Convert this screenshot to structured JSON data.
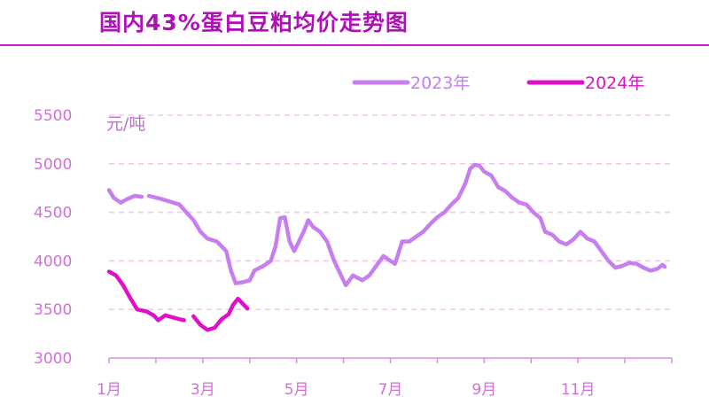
{
  "chart_data": {
    "type": "line",
    "title": "国内43%蛋白豆粕均价走势图",
    "ylabel": "元/吨",
    "xlabel": "",
    "ylim": [
      3000,
      5500
    ],
    "yticks": [
      5500,
      5000,
      4500,
      4000,
      3500,
      3000
    ],
    "xlim": [
      1,
      13
    ],
    "xticks": [
      {
        "pos": 1,
        "label": "1月"
      },
      {
        "pos": 3,
        "label": "3月"
      },
      {
        "pos": 5,
        "label": "5月"
      },
      {
        "pos": 7,
        "label": "7月"
      },
      {
        "pos": 9,
        "label": "9月"
      },
      {
        "pos": 11,
        "label": "11月"
      }
    ],
    "grid": true,
    "legend_position": "top-right",
    "series": [
      {
        "name": "2023年",
        "color": "#c77ff0",
        "segments": [
          [
            [
              1.0,
              4730
            ],
            [
              1.1,
              4650
            ],
            [
              1.25,
              4600
            ],
            [
              1.4,
              4640
            ],
            [
              1.55,
              4670
            ],
            [
              1.7,
              4660
            ]
          ],
          [
            [
              1.85,
              4670
            ],
            [
              2.1,
              4640
            ],
            [
              2.3,
              4610
            ],
            [
              2.5,
              4580
            ],
            [
              2.65,
              4500
            ],
            [
              2.8,
              4420
            ],
            [
              2.95,
              4300
            ],
            [
              3.1,
              4230
            ],
            [
              3.3,
              4200
            ],
            [
              3.5,
              4100
            ],
            [
              3.6,
              3900
            ],
            [
              3.7,
              3770
            ],
            [
              3.85,
              3780
            ],
            [
              4.0,
              3800
            ],
            [
              4.1,
              3900
            ],
            [
              4.3,
              3950
            ],
            [
              4.45,
              4000
            ],
            [
              4.55,
              4150
            ],
            [
              4.65,
              4440
            ],
            [
              4.75,
              4450
            ],
            [
              4.85,
              4200
            ],
            [
              4.95,
              4100
            ],
            [
              5.05,
              4200
            ],
            [
              5.15,
              4300
            ],
            [
              5.25,
              4420
            ],
            [
              5.35,
              4350
            ],
            [
              5.5,
              4300
            ],
            [
              5.65,
              4200
            ],
            [
              5.8,
              4000
            ],
            [
              5.95,
              3850
            ],
            [
              6.05,
              3750
            ],
            [
              6.2,
              3850
            ],
            [
              6.4,
              3800
            ],
            [
              6.55,
              3850
            ],
            [
              6.7,
              3950
            ],
            [
              6.85,
              4050
            ],
            [
              7.0,
              4000
            ],
            [
              7.1,
              3970
            ],
            [
              7.25,
              4200
            ],
            [
              7.4,
              4200
            ],
            [
              7.55,
              4250
            ],
            [
              7.7,
              4300
            ],
            [
              7.85,
              4380
            ],
            [
              8.0,
              4450
            ],
            [
              8.15,
              4500
            ],
            [
              8.3,
              4580
            ],
            [
              8.45,
              4650
            ],
            [
              8.6,
              4800
            ],
            [
              8.7,
              4950
            ],
            [
              8.8,
              4990
            ],
            [
              8.9,
              4980
            ],
            [
              9.0,
              4920
            ],
            [
              9.15,
              4880
            ],
            [
              9.3,
              4760
            ],
            [
              9.45,
              4720
            ],
            [
              9.6,
              4650
            ],
            [
              9.75,
              4600
            ],
            [
              9.9,
              4580
            ],
            [
              10.05,
              4500
            ],
            [
              10.2,
              4440
            ],
            [
              10.3,
              4300
            ],
            [
              10.45,
              4270
            ],
            [
              10.6,
              4200
            ],
            [
              10.75,
              4170
            ],
            [
              10.9,
              4220
            ],
            [
              11.05,
              4300
            ],
            [
              11.2,
              4230
            ],
            [
              11.35,
              4200
            ],
            [
              11.5,
              4100
            ],
            [
              11.65,
              4000
            ],
            [
              11.8,
              3930
            ],
            [
              11.95,
              3950
            ],
            [
              12.1,
              3980
            ],
            [
              12.25,
              3970
            ],
            [
              12.4,
              3930
            ],
            [
              12.55,
              3900
            ],
            [
              12.7,
              3920
            ],
            [
              12.8,
              3960
            ],
            [
              12.85,
              3940
            ]
          ]
        ]
      },
      {
        "name": "2024年",
        "color": "#e010c8",
        "segments": [
          [
            [
              1.0,
              3890
            ],
            [
              1.15,
              3850
            ],
            [
              1.3,
              3750
            ],
            [
              1.45,
              3620
            ],
            [
              1.6,
              3500
            ],
            [
              1.8,
              3480
            ],
            [
              1.95,
              3440
            ],
            [
              2.05,
              3390
            ],
            [
              2.2,
              3440
            ],
            [
              2.35,
              3420
            ],
            [
              2.5,
              3400
            ],
            [
              2.6,
              3390
            ]
          ],
          [
            [
              2.8,
              3430
            ],
            [
              2.95,
              3340
            ],
            [
              3.1,
              3290
            ],
            [
              3.25,
              3310
            ],
            [
              3.4,
              3400
            ],
            [
              3.55,
              3450
            ],
            [
              3.65,
              3550
            ],
            [
              3.75,
              3610
            ],
            [
              3.85,
              3560
            ],
            [
              3.95,
              3510
            ]
          ]
        ]
      }
    ]
  }
}
